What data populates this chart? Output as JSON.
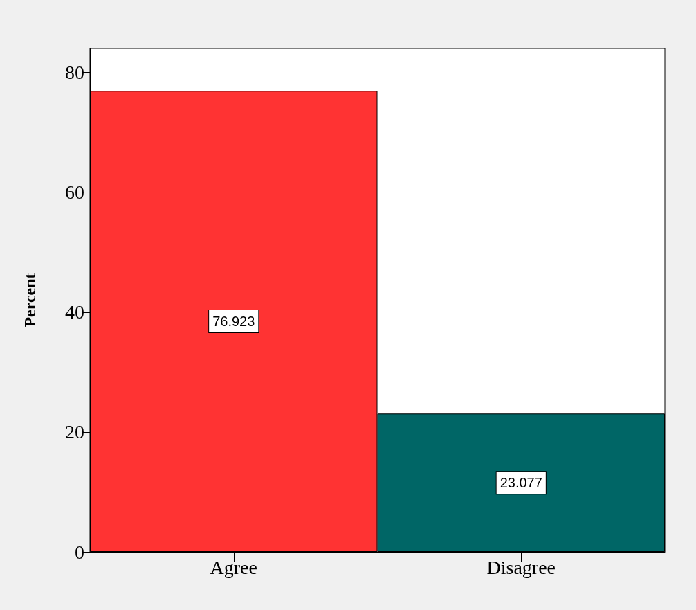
{
  "chart_data": {
    "type": "bar",
    "ylabel": "Percent",
    "categories": [
      "Agree",
      "Disagree"
    ],
    "values": [
      76.923,
      23.077
    ],
    "colors": [
      "#ff3333",
      "#006666"
    ],
    "ylim": [
      0,
      84
    ],
    "yticks": [
      0,
      20,
      40,
      60,
      80
    ],
    "data_labels": true,
    "grid": false
  }
}
